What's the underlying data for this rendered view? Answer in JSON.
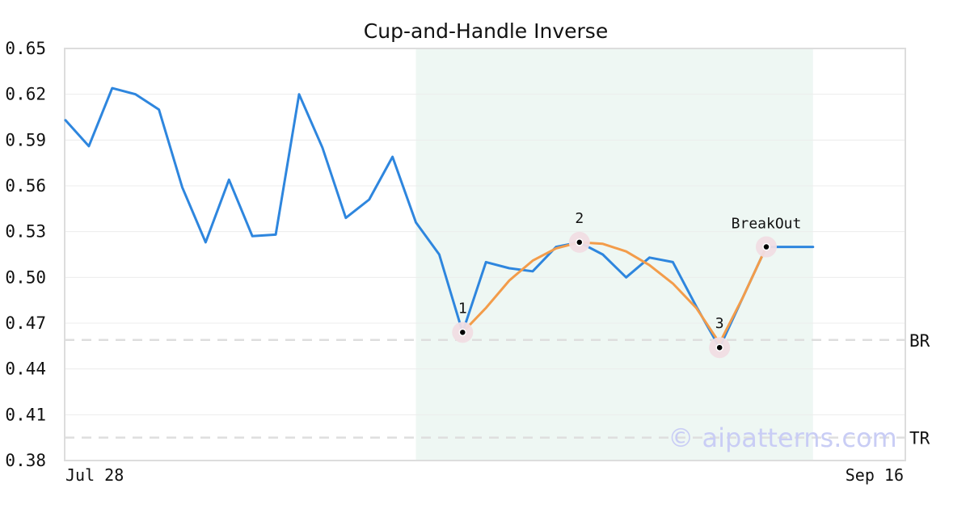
{
  "chart_data": {
    "type": "line",
    "title": "Cup-and-Handle Inverse",
    "ylim": [
      0.38,
      0.65
    ],
    "y_ticks": [
      "0.65",
      "0.62",
      "0.59",
      "0.56",
      "0.53",
      "0.50",
      "0.47",
      "0.44",
      "0.41",
      "0.38"
    ],
    "x_labels": [
      "Jul 28",
      "Sep 16"
    ],
    "x_range": [
      "Jul 28",
      "Sep 16"
    ],
    "grid": "horizontal",
    "series": [
      {
        "name": "",
        "color": "#2e86de",
        "x": [
          0,
          1,
          2,
          3,
          4,
          5,
          6,
          7,
          8,
          9,
          10,
          11,
          12,
          13,
          14,
          15,
          16,
          17,
          18,
          19,
          20,
          21,
          22,
          23,
          24,
          25,
          26,
          27,
          28,
          29,
          30,
          31,
          32
        ],
        "values": [
          0.603,
          0.586,
          0.624,
          0.62,
          0.61,
          0.559,
          0.523,
          0.564,
          0.527,
          0.528,
          0.62,
          0.585,
          0.539,
          0.551,
          0.579,
          0.536,
          0.515,
          0.464,
          0.51,
          0.506,
          0.504,
          0.52,
          0.523,
          0.515,
          0.5,
          0.513,
          0.51,
          0.481,
          0.454,
          0.487,
          0.52,
          0.52,
          0.52
        ]
      },
      {
        "name": "",
        "color": "#f39c4a",
        "x": [
          17,
          18,
          19,
          20,
          21,
          22,
          23,
          24,
          25,
          26,
          27,
          28,
          29,
          30
        ],
        "values": [
          0.464,
          0.48,
          0.498,
          0.511,
          0.519,
          0.523,
          0.522,
          0.517,
          0.508,
          0.496,
          0.48,
          0.457,
          0.487,
          0.52
        ]
      }
    ],
    "shaded_region": {
      "x_start": 15,
      "x_end": 32,
      "color": "#eef7f3"
    },
    "horizontal_lines": [
      {
        "label": "BR",
        "value": 0.459
      },
      {
        "label": "TR",
        "value": 0.395
      }
    ],
    "points": [
      {
        "label": "1",
        "x": 17,
        "value": 0.464
      },
      {
        "label": "2",
        "x": 22,
        "value": 0.523
      },
      {
        "label": "3",
        "x": 28,
        "value": 0.454
      },
      {
        "label": "BreakOut",
        "x": 30,
        "value": 0.52
      }
    ],
    "watermark": "© aipatterns.com"
  }
}
